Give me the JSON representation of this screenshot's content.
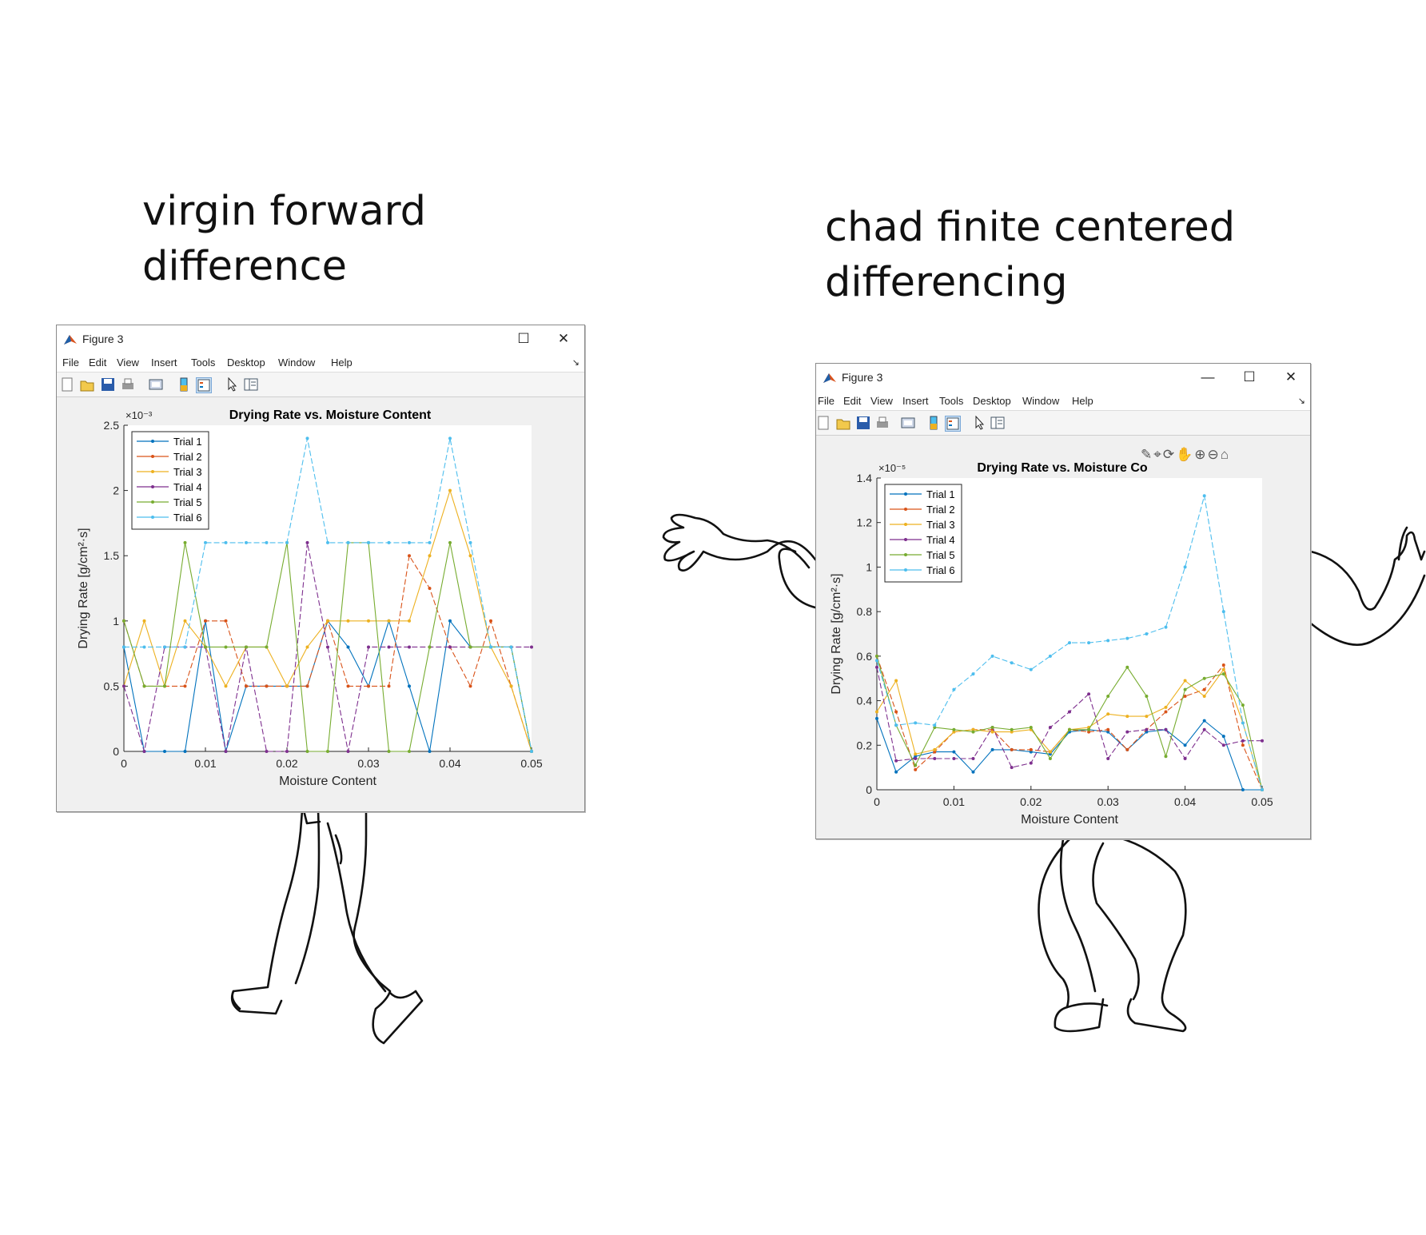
{
  "captions": {
    "left": "virgin forward difference",
    "right": "chad finite centered differencing"
  },
  "colors": {
    "trial1": "#0072BD",
    "trial2": "#D95319",
    "trial3": "#EDB120",
    "trial4": "#7E2F8E",
    "trial5": "#77AC30",
    "trial6": "#4DBEEE"
  },
  "figures": [
    {
      "window_title": "Figure 3",
      "window_buttons": [
        "maximize-icon",
        "close-icon"
      ],
      "menu": [
        "File",
        "Edit",
        "View",
        "Insert",
        "Tools",
        "Desktop",
        "Window",
        "Help"
      ],
      "toolbar_icons": [
        "new-figure-icon",
        "open-file-icon",
        "save-icon",
        "print-icon",
        "print-preview-icon",
        "colorbar-icon",
        "legend-icon",
        "pointer-icon",
        "property-editor-icon"
      ]
    },
    {
      "window_title": "Figure 3",
      "window_buttons": [
        "minimize-icon",
        "maximize-icon",
        "close-icon"
      ],
      "menu": [
        "File",
        "Edit",
        "View",
        "Insert",
        "Tools",
        "Desktop",
        "Window",
        "Help"
      ],
      "toolbar_icons": [
        "new-figure-icon",
        "open-file-icon",
        "save-icon",
        "print-icon",
        "print-preview-icon",
        "colorbar-icon",
        "legend-icon",
        "pointer-icon",
        "property-editor-icon"
      ],
      "axes_toolbar_icons": [
        "brush-icon",
        "data-tip-icon",
        "rotate-icon",
        "pan-icon",
        "zoom-in-icon",
        "zoom-out-icon",
        "home-icon"
      ]
    }
  ],
  "chart_data": [
    {
      "type": "line",
      "title": "Drying Rate vs. Moisture Content",
      "xlabel": "Moisture Content",
      "ylabel": "Drying Rate [g/cm²·s]",
      "y_exponent": "×10⁻³",
      "xlim": [
        0,
        0.05
      ],
      "ylim": [
        0,
        2.5
      ],
      "xticks": [
        "0",
        "0.01",
        "0.02",
        "0.03",
        "0.04",
        "0.05"
      ],
      "yticks": [
        "0",
        "0.5",
        "1",
        "1.5",
        "2",
        "2.5"
      ],
      "grid": false,
      "legend_position": "top-left",
      "series": [
        {
          "name": "Trial 1",
          "x": [
            0,
            0.0025,
            0.005,
            0.0075,
            0.01,
            0.0125,
            0.015,
            0.0175,
            0.02,
            0.0225,
            0.025,
            0.0275,
            0.03,
            0.0325,
            0.035,
            0.0375,
            0.04,
            0.0425,
            0.045,
            0.0475,
            0.05
          ],
          "y": [
            0.8,
            0,
            0,
            0,
            1.0,
            0,
            0.5,
            0.5,
            0.5,
            0.5,
            1.0,
            0.8,
            0.5,
            1.0,
            0.5,
            0,
            1.0,
            0.8,
            0.8,
            0.8,
            0
          ]
        },
        {
          "name": "Trial 2",
          "x": [
            0,
            0.0025,
            0.005,
            0.0075,
            0.01,
            0.0125,
            0.015,
            0.0175,
            0.02,
            0.0225,
            0.025,
            0.0275,
            0.03,
            0.0325,
            0.035,
            0.0375,
            0.04,
            0.0425,
            0.045,
            0.0475,
            0.05
          ],
          "y": [
            1.0,
            0.5,
            0.5,
            0.5,
            1.0,
            1.0,
            0.5,
            0.5,
            0.5,
            0.5,
            1.0,
            0.5,
            0.5,
            0.5,
            1.5,
            1.25,
            0.8,
            0.5,
            1.0,
            0.5,
            0
          ]
        },
        {
          "name": "Trial 3",
          "x": [
            0,
            0.0025,
            0.005,
            0.0075,
            0.01,
            0.0125,
            0.015,
            0.0175,
            0.02,
            0.0225,
            0.025,
            0.0275,
            0.03,
            0.0325,
            0.035,
            0.0375,
            0.04,
            0.0425,
            0.045,
            0.0475,
            0.05
          ],
          "y": [
            0.5,
            1.0,
            0.5,
            1.0,
            0.8,
            0.5,
            0.8,
            0.8,
            0.5,
            0.8,
            1.0,
            1.0,
            1.0,
            1.0,
            1.0,
            1.5,
            2.0,
            1.5,
            0.8,
            0.5,
            0
          ]
        },
        {
          "name": "Trial 4",
          "x": [
            0,
            0.0025,
            0.005,
            0.0075,
            0.01,
            0.0125,
            0.015,
            0.0175,
            0.02,
            0.0225,
            0.025,
            0.0275,
            0.03,
            0.0325,
            0.035,
            0.0375,
            0.04,
            0.0425,
            0.045,
            0.0475,
            0.05
          ],
          "y": [
            0.5,
            0,
            0.8,
            0.8,
            0.8,
            0,
            0.8,
            0,
            0,
            1.6,
            0.8,
            0,
            0.8,
            0.8,
            0.8,
            0.8,
            0.8,
            0.8,
            0.8,
            0.8,
            0.8
          ]
        },
        {
          "name": "Trial 5",
          "x": [
            0,
            0.0025,
            0.005,
            0.0075,
            0.01,
            0.0125,
            0.015,
            0.0175,
            0.02,
            0.0225,
            0.025,
            0.0275,
            0.03,
            0.0325,
            0.035,
            0.0375,
            0.04,
            0.0425,
            0.045,
            0.0475,
            0.05
          ],
          "y": [
            1.0,
            0.5,
            0.5,
            1.6,
            0.8,
            0.8,
            0.8,
            0.8,
            1.6,
            0,
            0,
            1.6,
            1.6,
            0,
            0,
            0.8,
            1.6,
            0.8,
            0.8,
            0.8,
            0
          ]
        },
        {
          "name": "Trial 6",
          "x": [
            0,
            0.0025,
            0.005,
            0.0075,
            0.01,
            0.0125,
            0.015,
            0.0175,
            0.02,
            0.0225,
            0.025,
            0.0275,
            0.03,
            0.0325,
            0.035,
            0.0375,
            0.04,
            0.0425,
            0.045,
            0.0475,
            0.05
          ],
          "y": [
            0.8,
            0.8,
            0.8,
            0.8,
            1.6,
            1.6,
            1.6,
            1.6,
            1.6,
            2.4,
            1.6,
            1.6,
            1.6,
            1.6,
            1.6,
            1.6,
            2.4,
            1.6,
            0.8,
            0.8,
            0
          ]
        }
      ]
    },
    {
      "type": "line",
      "title": "Drying Rate vs. Moisture Co",
      "xlabel": "Moisture Content",
      "ylabel": "Drying Rate [g/cm²·s]",
      "y_exponent": "×10⁻⁵",
      "xlim": [
        0,
        0.05
      ],
      "ylim": [
        0,
        1.4
      ],
      "xticks": [
        "0",
        "0.01",
        "0.02",
        "0.03",
        "0.04",
        "0.05"
      ],
      "yticks": [
        "0",
        "0.2",
        "0.4",
        "0.6",
        "0.8",
        "1",
        "1.2",
        "1.4"
      ],
      "grid": false,
      "legend_position": "top-left",
      "series": [
        {
          "name": "Trial 1",
          "x": [
            0,
            0.0025,
            0.005,
            0.0075,
            0.01,
            0.0125,
            0.015,
            0.0175,
            0.02,
            0.0225,
            0.025,
            0.0275,
            0.03,
            0.0325,
            0.035,
            0.0375,
            0.04,
            0.0425,
            0.045,
            0.0475,
            0.05
          ],
          "y": [
            0.32,
            0.08,
            0.15,
            0.17,
            0.17,
            0.08,
            0.18,
            0.18,
            0.17,
            0.16,
            0.26,
            0.27,
            0.26,
            0.18,
            0.26,
            0.27,
            0.2,
            0.31,
            0.24,
            0.0,
            0.0
          ]
        },
        {
          "name": "Trial 2",
          "x": [
            0,
            0.0025,
            0.005,
            0.0075,
            0.01,
            0.0125,
            0.015,
            0.0175,
            0.02,
            0.0225,
            0.025,
            0.0275,
            0.03,
            0.0325,
            0.035,
            0.0375,
            0.04,
            0.0425,
            0.045,
            0.0475,
            0.05
          ],
          "y": [
            0.6,
            0.35,
            0.09,
            0.17,
            0.26,
            0.27,
            0.27,
            0.18,
            0.18,
            0.17,
            0.27,
            0.26,
            0.27,
            0.18,
            0.27,
            0.35,
            0.42,
            0.45,
            0.56,
            0.2,
            0.0
          ]
        },
        {
          "name": "Trial 3",
          "x": [
            0,
            0.0025,
            0.005,
            0.0075,
            0.01,
            0.0125,
            0.015,
            0.0175,
            0.02,
            0.0225,
            0.025,
            0.0275,
            0.03,
            0.0325,
            0.035,
            0.0375,
            0.04,
            0.0425,
            0.045,
            0.0475,
            0.05
          ],
          "y": [
            0.35,
            0.49,
            0.16,
            0.18,
            0.26,
            0.27,
            0.26,
            0.26,
            0.27,
            0.17,
            0.27,
            0.28,
            0.34,
            0.33,
            0.33,
            0.37,
            0.49,
            0.42,
            0.54,
            0.3,
            0.0
          ]
        },
        {
          "name": "Trial 4",
          "x": [
            0,
            0.0025,
            0.005,
            0.0075,
            0.01,
            0.0125,
            0.015,
            0.0175,
            0.02,
            0.0225,
            0.025,
            0.0275,
            0.03,
            0.0325,
            0.035,
            0.0375,
            0.04,
            0.0425,
            0.045,
            0.0475,
            0.05
          ],
          "y": [
            0.55,
            0.13,
            0.14,
            0.14,
            0.14,
            0.14,
            0.28,
            0.1,
            0.12,
            0.28,
            0.35,
            0.43,
            0.14,
            0.26,
            0.27,
            0.27,
            0.14,
            0.27,
            0.2,
            0.22,
            0.22
          ]
        },
        {
          "name": "Trial 5",
          "x": [
            0,
            0.0025,
            0.005,
            0.0075,
            0.01,
            0.0125,
            0.015,
            0.0175,
            0.02,
            0.0225,
            0.025,
            0.0275,
            0.03,
            0.0325,
            0.035,
            0.0375,
            0.04,
            0.0425,
            0.045,
            0.0475,
            0.05
          ],
          "y": [
            0.6,
            0.29,
            0.11,
            0.28,
            0.27,
            0.26,
            0.28,
            0.27,
            0.28,
            0.14,
            0.27,
            0.27,
            0.42,
            0.55,
            0.42,
            0.15,
            0.45,
            0.5,
            0.52,
            0.38,
            0.0
          ]
        },
        {
          "name": "Trial 6",
          "x": [
            0,
            0.0025,
            0.005,
            0.0075,
            0.01,
            0.0125,
            0.015,
            0.0175,
            0.02,
            0.0225,
            0.025,
            0.0275,
            0.03,
            0.0325,
            0.035,
            0.0375,
            0.04,
            0.0425,
            0.045,
            0.0475,
            0.05
          ],
          "y": [
            0.58,
            0.29,
            0.3,
            0.29,
            0.45,
            0.52,
            0.6,
            0.57,
            0.54,
            0.6,
            0.66,
            0.66,
            0.67,
            0.68,
            0.7,
            0.73,
            1.0,
            1.32,
            0.8,
            0.3,
            0.0
          ]
        }
      ]
    }
  ]
}
